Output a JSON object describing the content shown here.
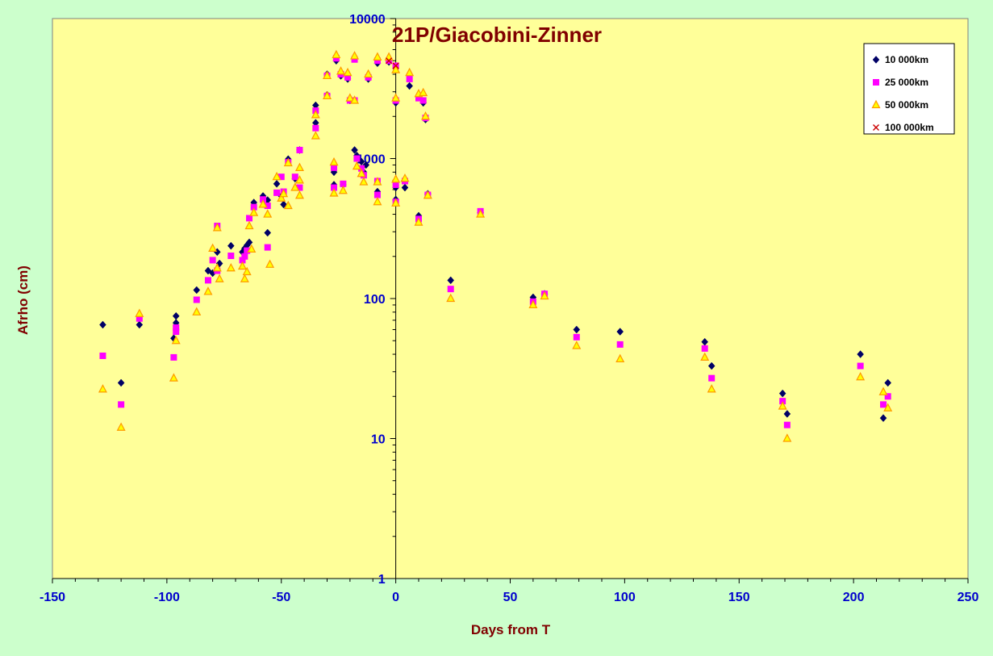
{
  "chart_data": {
    "type": "scatter",
    "title": "21P/Giacobini-Zinner",
    "xlabel": "Days from T",
    "ylabel": "Afrho (cm)",
    "xlim": [
      -150,
      250
    ],
    "ylim": [
      1,
      10000
    ],
    "yscale": "log",
    "x_ticks": [
      "-150",
      "-100",
      "-50",
      "0",
      "50",
      "100",
      "150",
      "200",
      "250"
    ],
    "y_ticks": [
      "1",
      "10",
      "100",
      "1000",
      "10000"
    ],
    "grid": false,
    "legend_position": "top-right",
    "colors": {
      "plot_background": "#ffff99",
      "chart_background": "#ccffcc",
      "axis_text": "#0000cc",
      "title_text": "#800000"
    },
    "series": [
      {
        "name": "10 000km",
        "marker": "diamond",
        "color": "#000066",
        "points": [
          [
            -128,
            65
          ],
          [
            -120,
            25
          ],
          [
            -112,
            65
          ],
          [
            -97,
            52
          ],
          [
            -96,
            67
          ],
          [
            -96,
            75
          ],
          [
            -87,
            115
          ],
          [
            -82,
            158
          ],
          [
            -80,
            152
          ],
          [
            -78,
            215
          ],
          [
            -77,
            178
          ],
          [
            -72,
            238
          ],
          [
            -67,
            215
          ],
          [
            -66,
            228
          ],
          [
            -65,
            240
          ],
          [
            -64,
            252
          ],
          [
            -62,
            485
          ],
          [
            -58,
            540
          ],
          [
            -56,
            505
          ],
          [
            -56,
            295
          ],
          [
            -52,
            660
          ],
          [
            -50,
            540
          ],
          [
            -49,
            470
          ],
          [
            -47,
            990
          ],
          [
            -44,
            720
          ],
          [
            -42,
            1150
          ],
          [
            -35,
            2400
          ],
          [
            -35,
            1800
          ],
          [
            -30,
            4000
          ],
          [
            -30,
            2850
          ],
          [
            -27,
            800
          ],
          [
            -27,
            650
          ],
          [
            -26,
            5000
          ],
          [
            -24,
            3900
          ],
          [
            -23,
            650
          ],
          [
            -21,
            3700
          ],
          [
            -20,
            2600
          ],
          [
            -18,
            5200
          ],
          [
            -18,
            1150
          ],
          [
            -17,
            1050
          ],
          [
            -15,
            950
          ],
          [
            -14,
            800
          ],
          [
            -13,
            900
          ],
          [
            -12,
            3700
          ],
          [
            -8,
            4800
          ],
          [
            -8,
            580
          ],
          [
            -3,
            4900
          ],
          [
            0,
            4400
          ],
          [
            0,
            2500
          ],
          [
            0,
            620
          ],
          [
            0,
            510
          ],
          [
            4,
            620
          ],
          [
            6,
            3300
          ],
          [
            10,
            2800
          ],
          [
            10,
            390
          ],
          [
            12,
            2500
          ],
          [
            13,
            1900
          ],
          [
            14,
            560
          ],
          [
            24,
            135
          ],
          [
            37,
            410
          ],
          [
            60,
            102
          ],
          [
            65,
            108
          ],
          [
            79,
            60
          ],
          [
            98,
            58
          ],
          [
            135,
            49
          ],
          [
            138,
            33
          ],
          [
            169,
            21
          ],
          [
            171,
            15
          ],
          [
            203,
            40
          ],
          [
            213,
            14
          ],
          [
            215,
            25
          ]
        ]
      },
      {
        "name": "25 000km",
        "marker": "square",
        "color": "#ff00ff",
        "points": [
          [
            -128,
            39
          ],
          [
            -120,
            17.5
          ],
          [
            -112,
            72
          ],
          [
            -97,
            38
          ],
          [
            -96,
            58
          ],
          [
            -96,
            62
          ],
          [
            -87,
            98
          ],
          [
            -82,
            135
          ],
          [
            -80,
            188
          ],
          [
            -78,
            330
          ],
          [
            -78,
            158
          ],
          [
            -72,
            202
          ],
          [
            -67,
            188
          ],
          [
            -66,
            200
          ],
          [
            -65,
            220
          ],
          [
            -64,
            375
          ],
          [
            -62,
            450
          ],
          [
            -58,
            510
          ],
          [
            -56,
            460
          ],
          [
            -56,
            232
          ],
          [
            -52,
            570
          ],
          [
            -50,
            740
          ],
          [
            -49,
            580
          ],
          [
            -47,
            940
          ],
          [
            -44,
            740
          ],
          [
            -42,
            620
          ],
          [
            -42,
            1150
          ],
          [
            -35,
            2200
          ],
          [
            -35,
            1650
          ],
          [
            -30,
            3900
          ],
          [
            -30,
            2800
          ],
          [
            -27,
            860
          ],
          [
            -27,
            620
          ],
          [
            -26,
            5200
          ],
          [
            -24,
            4000
          ],
          [
            -23,
            660
          ],
          [
            -21,
            3800
          ],
          [
            -20,
            2600
          ],
          [
            -18,
            5100
          ],
          [
            -18,
            2600
          ],
          [
            -17,
            1000
          ],
          [
            -15,
            850
          ],
          [
            -14,
            760
          ],
          [
            -12,
            3800
          ],
          [
            -8,
            5000
          ],
          [
            -8,
            690
          ],
          [
            -8,
            550
          ],
          [
            -3,
            5000
          ],
          [
            0,
            4600
          ],
          [
            0,
            2600
          ],
          [
            0,
            650
          ],
          [
            0,
            490
          ],
          [
            4,
            690
          ],
          [
            6,
            3700
          ],
          [
            10,
            2700
          ],
          [
            10,
            370
          ],
          [
            12,
            2600
          ],
          [
            13,
            1950
          ],
          [
            14,
            550
          ],
          [
            24,
            117
          ],
          [
            37,
            420
          ],
          [
            60,
            95
          ],
          [
            65,
            108
          ],
          [
            79,
            53
          ],
          [
            98,
            47
          ],
          [
            135,
            44
          ],
          [
            138,
            27
          ],
          [
            169,
            18.5
          ],
          [
            171,
            12.5
          ],
          [
            203,
            33
          ],
          [
            213,
            17.5
          ],
          [
            215,
            20
          ]
        ]
      },
      {
        "name": "50 000km",
        "marker": "triangle",
        "color": "#ff9900",
        "points": [
          [
            -128,
            22.5
          ],
          [
            -120,
            12
          ],
          [
            -112,
            78
          ],
          [
            -97,
            27
          ],
          [
            -96,
            50
          ],
          [
            -87,
            80
          ],
          [
            -82,
            112
          ],
          [
            -80,
            228
          ],
          [
            -78,
            320
          ],
          [
            -78,
            165
          ],
          [
            -77,
            138
          ],
          [
            -72,
            165
          ],
          [
            -67,
            170
          ],
          [
            -66,
            138
          ],
          [
            -65,
            155
          ],
          [
            -64,
            330
          ],
          [
            -63,
            225
          ],
          [
            -62,
            410
          ],
          [
            -58,
            470
          ],
          [
            -56,
            400
          ],
          [
            -55,
            175
          ],
          [
            -52,
            740
          ],
          [
            -50,
            520
          ],
          [
            -49,
            560
          ],
          [
            -47,
            460
          ],
          [
            -47,
            930
          ],
          [
            -44,
            620
          ],
          [
            -42,
            860
          ],
          [
            -42,
            545
          ],
          [
            -42,
            700
          ],
          [
            -35,
            2050
          ],
          [
            -35,
            1450
          ],
          [
            -30,
            3900
          ],
          [
            -30,
            2800
          ],
          [
            -27,
            940
          ],
          [
            -27,
            565
          ],
          [
            -26,
            5500
          ],
          [
            -24,
            4200
          ],
          [
            -23,
            590
          ],
          [
            -21,
            4100
          ],
          [
            -20,
            2700
          ],
          [
            -18,
            5400
          ],
          [
            -18,
            2600
          ],
          [
            -17,
            880
          ],
          [
            -15,
            780
          ],
          [
            -14,
            680
          ],
          [
            -12,
            4000
          ],
          [
            -8,
            5300
          ],
          [
            -8,
            680
          ],
          [
            -8,
            490
          ],
          [
            -3,
            5300
          ],
          [
            0,
            4300
          ],
          [
            0,
            2700
          ],
          [
            0,
            710
          ],
          [
            0,
            480
          ],
          [
            4,
            720
          ],
          [
            6,
            4100
          ],
          [
            10,
            2900
          ],
          [
            10,
            350
          ],
          [
            12,
            2950
          ],
          [
            13,
            2000
          ],
          [
            14,
            545
          ],
          [
            24,
            100
          ],
          [
            37,
            400
          ],
          [
            60,
            90
          ],
          [
            65,
            104
          ],
          [
            79,
            46
          ],
          [
            98,
            37
          ],
          [
            135,
            38
          ],
          [
            138,
            22.5
          ],
          [
            169,
            17
          ],
          [
            171,
            10
          ],
          [
            203,
            27.5
          ],
          [
            213,
            21.5
          ],
          [
            215,
            16.5
          ]
        ]
      },
      {
        "name": "100 000km",
        "marker": "cross",
        "color": "#cc0000",
        "points": [
          [
            -3,
            5000
          ],
          [
            0,
            4600
          ]
        ]
      }
    ]
  }
}
